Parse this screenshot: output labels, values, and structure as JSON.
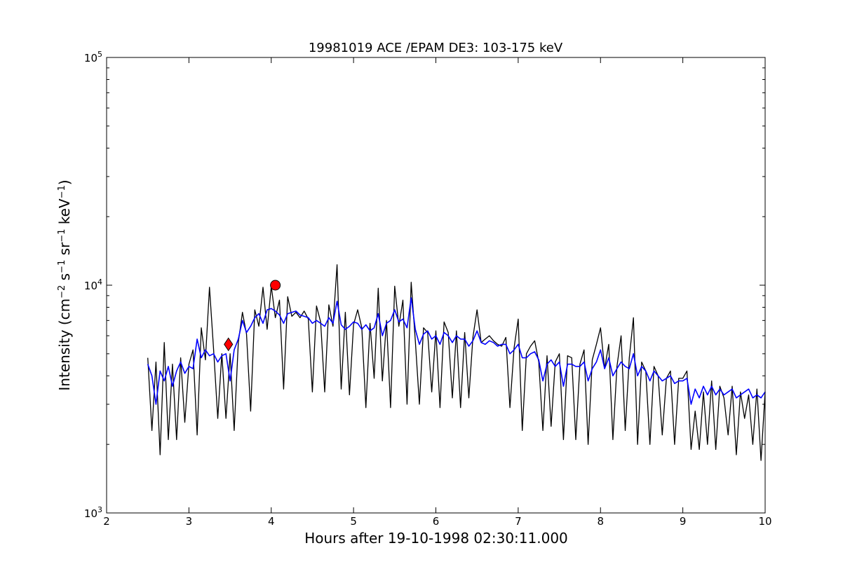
{
  "chart_data": {
    "type": "line",
    "title": "19981019 ACE /EPAM DE3: 103-175 keV",
    "xlabel": "Hours after 19-10-1998 02:30:11.000",
    "ylabel": {
      "prefix": "Intensity (cm",
      "sup1": "−2",
      "mid1": " s",
      "sup2": "−1",
      "mid2": " sr",
      "sup3": "−1",
      "mid3": " keV",
      "sup4": "−1",
      "suffix": ")"
    },
    "xlim": [
      2,
      10
    ],
    "ylim": [
      1000,
      100000
    ],
    "yscale": "log",
    "x_ticks": [
      2,
      3,
      4,
      5,
      6,
      7,
      8,
      9,
      10
    ],
    "y_ticks": [
      {
        "value": 1000,
        "base": "10",
        "exp": "3"
      },
      {
        "value": 10000,
        "base": "10",
        "exp": "4"
      },
      {
        "value": 100000,
        "base": "10",
        "exp": "5"
      }
    ],
    "grid": false,
    "colors": {
      "raw": "#000000",
      "smoothed": "#0000ff",
      "marker": "#ff0000"
    },
    "series": [
      {
        "style": "raw",
        "x": [
          2.5,
          2.55,
          2.6,
          2.65,
          2.7,
          2.75,
          2.8,
          2.85,
          2.9,
          2.95,
          3.0,
          3.05,
          3.1,
          3.15,
          3.2,
          3.25,
          3.3,
          3.35,
          3.4,
          3.45,
          3.5,
          3.55,
          3.6,
          3.65,
          3.7,
          3.75,
          3.8,
          3.85,
          3.9,
          3.95,
          4.0,
          4.05,
          4.1,
          4.15,
          4.2,
          4.25,
          4.3,
          4.35,
          4.4,
          4.45,
          4.5,
          4.55,
          4.6,
          4.65,
          4.7,
          4.75,
          4.8,
          4.85,
          4.9,
          4.95,
          5.0,
          5.05,
          5.1,
          5.15,
          5.2,
          5.25,
          5.3,
          5.35,
          5.4,
          5.45,
          5.5,
          5.55,
          5.6,
          5.65,
          5.7,
          5.75,
          5.8,
          5.85,
          5.9,
          5.95,
          6.0,
          6.05,
          6.1,
          6.15,
          6.2,
          6.25,
          6.3,
          6.35,
          6.4,
          6.45,
          6.5,
          6.55,
          6.6,
          6.65,
          6.7,
          6.75,
          6.8,
          6.85,
          6.9,
          6.95,
          7.0,
          7.05,
          7.1,
          7.15,
          7.2,
          7.25,
          7.3,
          7.35,
          7.4,
          7.45,
          7.5,
          7.55,
          7.6,
          7.65,
          7.7,
          7.75,
          7.8,
          7.85,
          7.9,
          7.95,
          8.0,
          8.05,
          8.1,
          8.15,
          8.2,
          8.25,
          8.3,
          8.35,
          8.4,
          8.45,
          8.5,
          8.55,
          8.6,
          8.65,
          8.7,
          8.75,
          8.8,
          8.85,
          8.9,
          8.95,
          9.0,
          9.05,
          9.1,
          9.15,
          9.2,
          9.25,
          9.3,
          9.35,
          9.4,
          9.45,
          9.5,
          9.55,
          9.6,
          9.65,
          9.7,
          9.75,
          9.8,
          9.85,
          9.9,
          9.95,
          10.0
        ],
        "y": [
          4800,
          2300,
          4600,
          1800,
          5600,
          2100,
          4500,
          2100,
          4800,
          2500,
          4500,
          5200,
          2200,
          6500,
          4700,
          9800,
          5200,
          2600,
          5000,
          2600,
          5000,
          2300,
          5600,
          7600,
          6100,
          2800,
          7800,
          6600,
          9800,
          6400,
          9900,
          7200,
          8600,
          3500,
          8900,
          7300,
          7600,
          7200,
          7700,
          7100,
          3400,
          8100,
          6900,
          3400,
          8200,
          6600,
          12300,
          3500,
          7600,
          3300,
          6700,
          7800,
          6500,
          2900,
          6800,
          3900,
          9700,
          3800,
          7000,
          2900,
          9900,
          6600,
          8600,
          3000,
          10300,
          5700,
          3000,
          6500,
          6200,
          3400,
          6300,
          2900,
          6900,
          6200,
          3200,
          6300,
          2900,
          6200,
          3200,
          5900,
          7800,
          5600,
          5800,
          6000,
          5700,
          5500,
          5400,
          5900,
          2900,
          5300,
          7100,
          2300,
          5000,
          5400,
          5700,
          4600,
          2300,
          4900,
          2400,
          4600,
          5000,
          2100,
          4900,
          4800,
          2100,
          4500,
          5200,
          2000,
          4700,
          5500,
          6500,
          4300,
          5500,
          2100,
          4400,
          6000,
          2300,
          4800,
          7200,
          2000,
          4600,
          4200,
          2000,
          4400,
          4000,
          2200,
          3900,
          4200,
          2000,
          3900,
          3900,
          4200,
          1900,
          2800,
          1900,
          3400,
          2000,
          3800,
          1900,
          3600,
          3200,
          2200,
          3600,
          1800,
          3400,
          2600,
          3300,
          2000,
          3500,
          1700,
          3400
        ]
      },
      {
        "style": "smoothed",
        "x": [
          2.5,
          2.55,
          2.6,
          2.65,
          2.7,
          2.75,
          2.8,
          2.85,
          2.9,
          2.95,
          3.0,
          3.05,
          3.1,
          3.15,
          3.2,
          3.25,
          3.3,
          3.35,
          3.4,
          3.45,
          3.5,
          3.55,
          3.6,
          3.65,
          3.7,
          3.75,
          3.8,
          3.85,
          3.9,
          3.95,
          4.0,
          4.05,
          4.1,
          4.15,
          4.2,
          4.25,
          4.3,
          4.35,
          4.4,
          4.45,
          4.5,
          4.55,
          4.6,
          4.65,
          4.7,
          4.75,
          4.8,
          4.85,
          4.9,
          4.95,
          5.0,
          5.05,
          5.1,
          5.15,
          5.2,
          5.25,
          5.3,
          5.35,
          5.4,
          5.45,
          5.5,
          5.55,
          5.6,
          5.65,
          5.7,
          5.75,
          5.8,
          5.85,
          5.9,
          5.95,
          6.0,
          6.05,
          6.1,
          6.15,
          6.2,
          6.25,
          6.3,
          6.35,
          6.4,
          6.45,
          6.5,
          6.55,
          6.6,
          6.65,
          6.7,
          6.75,
          6.8,
          6.85,
          6.9,
          6.95,
          7.0,
          7.05,
          7.1,
          7.15,
          7.2,
          7.25,
          7.3,
          7.35,
          7.4,
          7.45,
          7.5,
          7.55,
          7.6,
          7.65,
          7.7,
          7.75,
          7.8,
          7.85,
          7.9,
          7.95,
          8.0,
          8.05,
          8.1,
          8.15,
          8.2,
          8.25,
          8.3,
          8.35,
          8.4,
          8.45,
          8.5,
          8.55,
          8.6,
          8.65,
          8.7,
          8.75,
          8.8,
          8.85,
          8.9,
          8.95,
          9.0,
          9.05,
          9.1,
          9.15,
          9.2,
          9.25,
          9.3,
          9.35,
          9.4,
          9.45,
          9.5,
          9.55,
          9.6,
          9.65,
          9.7,
          9.75,
          9.8,
          9.85,
          9.9,
          9.95,
          10.0
        ],
        "y": [
          4500,
          4000,
          3000,
          4200,
          3800,
          4400,
          3600,
          4200,
          4600,
          4100,
          4400,
          4300,
          5800,
          4800,
          5200,
          4900,
          5000,
          4600,
          4900,
          5000,
          3800,
          5200,
          5800,
          7000,
          6200,
          6600,
          7200,
          7500,
          6800,
          7800,
          7900,
          7700,
          7400,
          6800,
          7500,
          7600,
          7700,
          7400,
          7300,
          7200,
          6800,
          7000,
          6800,
          6600,
          7200,
          6800,
          8500,
          6700,
          6400,
          6600,
          6900,
          6800,
          6400,
          6700,
          6300,
          6500,
          7500,
          6000,
          6800,
          7000,
          7800,
          6900,
          7100,
          6500,
          8800,
          6400,
          5500,
          6100,
          6300,
          5800,
          6000,
          5500,
          6200,
          6000,
          5600,
          6000,
          5800,
          5800,
          5400,
          5700,
          6300,
          5600,
          5500,
          5700,
          5600,
          5400,
          5500,
          5500,
          5000,
          5200,
          5500,
          4800,
          4800,
          5000,
          5100,
          4700,
          3800,
          4500,
          4700,
          4400,
          4600,
          3600,
          4500,
          4500,
          4400,
          4400,
          4600,
          3800,
          4300,
          4600,
          5200,
          4300,
          4800,
          4000,
          4300,
          4600,
          4400,
          4300,
          5000,
          4000,
          4400,
          4200,
          3800,
          4200,
          4000,
          3800,
          3900,
          4000,
          3700,
          3800,
          3800,
          3900,
          3000,
          3500,
          3200,
          3600,
          3300,
          3600,
          3300,
          3500,
          3300,
          3400,
          3500,
          3200,
          3300,
          3400,
          3500,
          3200,
          3300,
          3200,
          3400
        ]
      }
    ],
    "markers": [
      {
        "shape": "diamond",
        "x": 3.48,
        "y": 5500
      },
      {
        "shape": "circle",
        "x": 4.05,
        "y": 10000
      }
    ]
  }
}
